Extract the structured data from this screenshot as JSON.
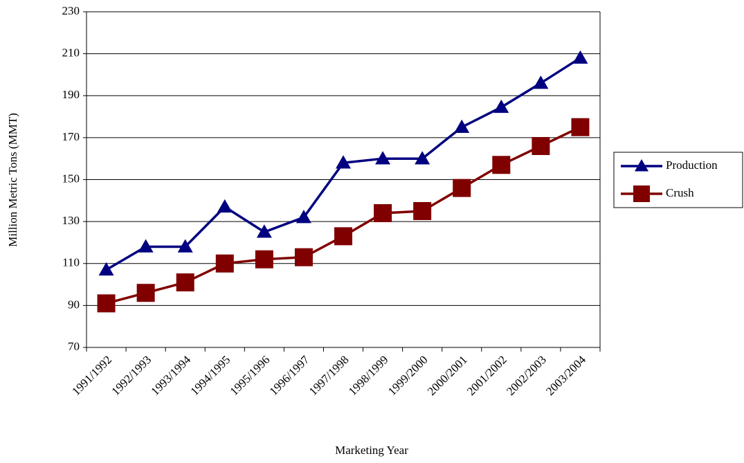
{
  "chart_data": {
    "type": "line",
    "x_label": "Marketing Year",
    "y_label": "Million Metric Tons (MMT)",
    "categories": [
      "1991/1992",
      "1992/1993",
      "1993/1994",
      "1994/1995",
      "1995/1996",
      "1996/1997",
      "1997/1998",
      "1998/1999",
      "1999/2000",
      "2000/2001",
      "2001/2002",
      "2002/2003",
      "2003/2004"
    ],
    "series": [
      {
        "name": "Production",
        "color": "#000080",
        "marker": "triangle",
        "values": [
          107,
          118,
          118,
          137,
          125,
          132,
          158,
          160,
          160,
          175,
          184.5,
          196,
          208
        ]
      },
      {
        "name": "Crush",
        "color": "#800000",
        "marker": "square",
        "values": [
          91,
          96,
          101,
          110,
          112,
          113,
          123,
          134,
          135,
          146,
          157,
          166,
          175
        ]
      }
    ],
    "ylim": [
      70,
      230
    ],
    "yticks": [
      70,
      90,
      110,
      130,
      150,
      170,
      190,
      210,
      230
    ],
    "grid": true,
    "legend": "right"
  }
}
